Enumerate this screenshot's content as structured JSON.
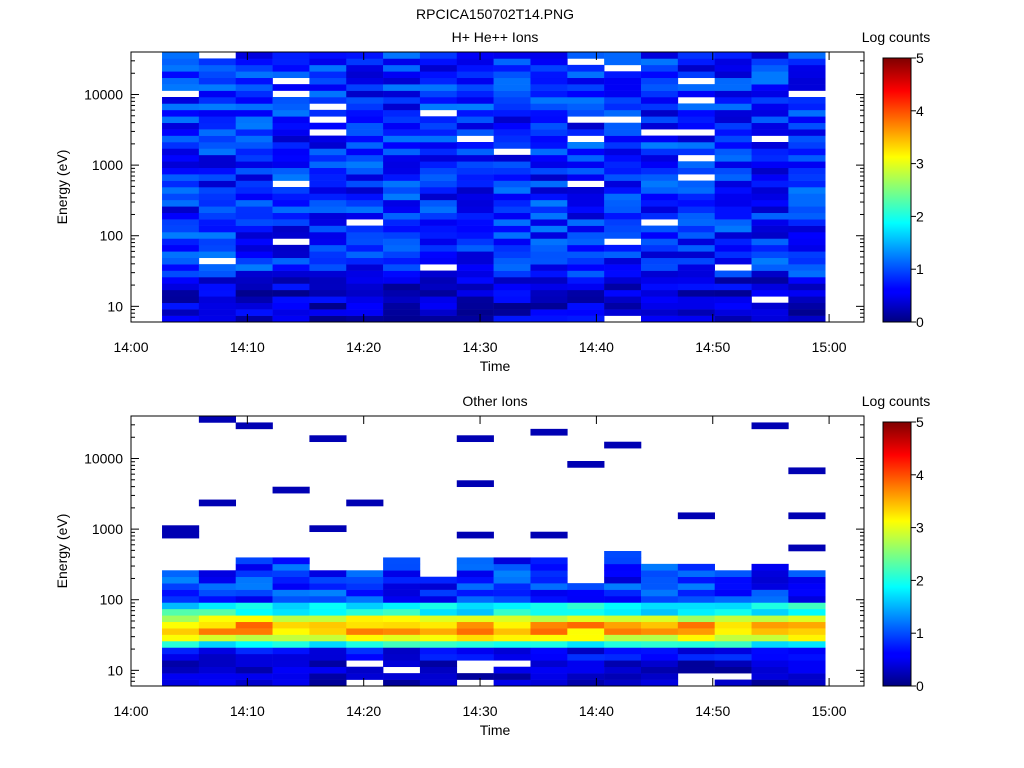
{
  "figure_title": "RPCICA150702T14.PNG",
  "chart_data": [
    {
      "type": "heatmap",
      "title": "H+ He++ Ions",
      "xlabel": "Time",
      "ylabel": "Energy (eV)",
      "x_ticks": [
        "14:00",
        "14:10",
        "14:20",
        "14:30",
        "14:40",
        "14:50",
        "15:00"
      ],
      "xlim": [
        "14:00",
        "15:03"
      ],
      "y_scale": "log",
      "ylim": [
        6,
        40000
      ],
      "y_ticks": [
        "10",
        "100",
        "1000",
        "10000"
      ],
      "y_tick_values": [
        10,
        100,
        1000,
        10000
      ],
      "colorbar": {
        "label": "Log counts",
        "range": [
          0,
          5
        ],
        "ticks": [
          "0",
          "1",
          "2",
          "3",
          "4",
          "5"
        ],
        "colormap": "jet"
      },
      "time_bins_start": [
        "14:02:40",
        "14:05:50",
        "14:09:00",
        "14:12:10",
        "14:15:20",
        "14:18:30",
        "14:21:40",
        "14:24:50",
        "14:28:00",
        "14:31:10",
        "14:34:20",
        "14:37:30",
        "14:40:40",
        "14:43:50",
        "14:47:00",
        "14:50:10",
        "14:53:20",
        "14:56:30"
      ],
      "time_bin_end": "14:59:40",
      "profile": "broad low-level counts (log ~0.3-1.4) from ~6 eV to ~40000 eV with scattered empty bins"
    },
    {
      "type": "heatmap",
      "title": "Other Ions",
      "xlabel": "Time",
      "ylabel": "Energy (eV)",
      "x_ticks": [
        "14:00",
        "14:10",
        "14:20",
        "14:30",
        "14:40",
        "14:50",
        "15:00"
      ],
      "xlim": [
        "14:00",
        "15:03"
      ],
      "y_scale": "log",
      "ylim": [
        6,
        40000
      ],
      "y_ticks": [
        "10",
        "100",
        "1000",
        "10000"
      ],
      "y_tick_values": [
        10,
        100,
        1000,
        10000
      ],
      "colorbar": {
        "label": "Log counts",
        "range": [
          0,
          5
        ],
        "ticks": [
          "0",
          "1",
          "2",
          "3",
          "4",
          "5"
        ],
        "colormap": "jet"
      },
      "time_bins_start": [
        "14:02:40",
        "14:05:50",
        "14:09:00",
        "14:12:10",
        "14:15:20",
        "14:18:30",
        "14:21:40",
        "14:24:50",
        "14:28:00",
        "14:31:10",
        "14:34:20",
        "14:37:30",
        "14:40:40",
        "14:43:50",
        "14:47:00",
        "14:50:10",
        "14:53:20",
        "14:56:30"
      ],
      "time_bin_end": "14:59:40",
      "core_band_eV": [
        20,
        60
      ],
      "core_peak_log_counts": 3.9,
      "profile": "intense band near 25-55 eV (log counts ~2.5-3.9), cyan/blue up to ~300 eV, sparse single-bin lines up to ~37000 eV"
    }
  ]
}
